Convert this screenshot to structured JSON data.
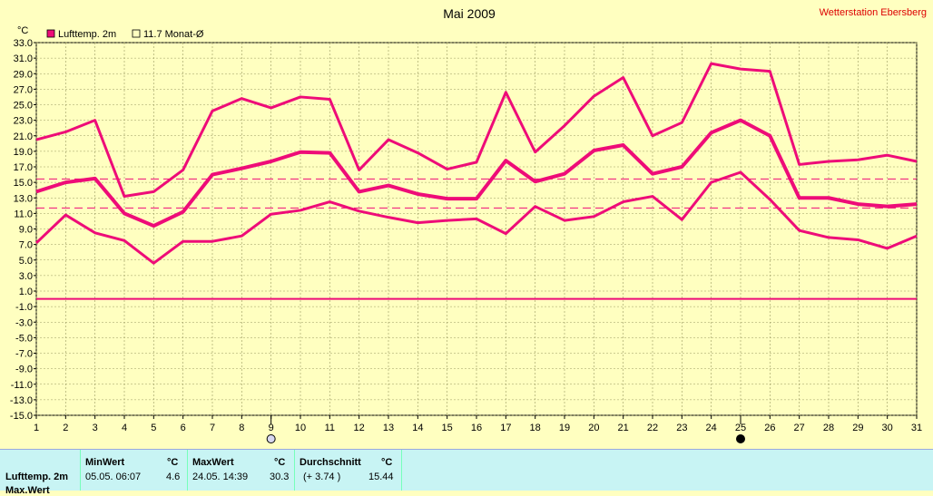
{
  "chart_data": {
    "type": "line",
    "title": "Mai 2009",
    "station": "Wetterstation Ebersberg",
    "unit_label": "°C",
    "legend": [
      {
        "label": "Lufttemp. 2m",
        "swatch": "filled"
      },
      {
        "label": "11.7 Monat-Ø",
        "swatch": "empty"
      }
    ],
    "x": [
      1,
      2,
      3,
      4,
      5,
      6,
      7,
      8,
      9,
      10,
      11,
      12,
      13,
      14,
      15,
      16,
      17,
      18,
      19,
      20,
      21,
      22,
      23,
      24,
      25,
      26,
      27,
      28,
      29,
      30,
      31
    ],
    "xlim": [
      1,
      31
    ],
    "ylim": [
      -15.0,
      33.0
    ],
    "yticks": [
      "33.0",
      "31.0",
      "29.0",
      "27.0",
      "25.0",
      "23.0",
      "21.0",
      "19.0",
      "17.0",
      "15.0",
      "13.0",
      "11.0",
      "9.0",
      "7.0",
      "5.0",
      "3.0",
      "1.0",
      "-1.0",
      "-3.0",
      "-5.0",
      "-7.0",
      "-9.0",
      "-11.0",
      "-13.0",
      "-15.0"
    ],
    "grid": true,
    "legend_position": "top-left",
    "series": [
      {
        "role": "max",
        "values": [
          20.5,
          21.5,
          23.0,
          13.2,
          13.8,
          16.6,
          24.2,
          25.8,
          24.6,
          26.0,
          25.7,
          16.6,
          20.5,
          18.8,
          16.7,
          17.6,
          26.6,
          18.9,
          22.3,
          26.1,
          28.5,
          21.0,
          22.7,
          30.3,
          29.6,
          29.3,
          17.3,
          17.7,
          17.9,
          18.5,
          17.7
        ]
      },
      {
        "role": "mean",
        "values": [
          13.8,
          15.0,
          15.5,
          11.0,
          9.4,
          11.2,
          16.0,
          16.8,
          17.7,
          18.9,
          18.8,
          13.8,
          14.6,
          13.5,
          12.9,
          12.9,
          17.8,
          15.1,
          16.1,
          19.1,
          19.8,
          16.1,
          17.0,
          21.4,
          23.0,
          21.0,
          13.0,
          13.0,
          12.2,
          11.9,
          12.2
        ]
      },
      {
        "role": "min",
        "values": [
          7.2,
          10.8,
          8.5,
          7.5,
          4.6,
          7.4,
          7.4,
          8.1,
          10.9,
          11.4,
          12.5,
          11.3,
          10.5,
          9.8,
          10.1,
          10.3,
          8.4,
          11.9,
          10.1,
          10.6,
          12.5,
          13.2,
          10.2,
          15.0,
          16.3,
          12.8,
          8.8,
          7.9,
          7.6,
          6.5,
          8.1
        ]
      }
    ],
    "reference_lines": [
      {
        "role": "zero",
        "y": 0.0,
        "style": "solid"
      },
      {
        "role": "monthly-average",
        "y": 11.7,
        "style": "dashed"
      },
      {
        "role": "upper-band",
        "y": 15.44,
        "style": "dashed"
      }
    ],
    "markers": [
      {
        "day": 9,
        "symbol": "open-circle"
      },
      {
        "day": 25,
        "symbol": "filled-circle"
      }
    ],
    "colors": {
      "series": "#ee0c78",
      "background": "#ffffc0",
      "grid": "#9a9a60",
      "station_text": "#dd0000"
    }
  },
  "stats": {
    "row_label": "Lufttemp. 2m",
    "next_row_label": "Max.Wert",
    "min_header": "MinWert",
    "max_header": "MaxWert",
    "avg_header": "Durchschnitt",
    "unit": "°C",
    "min_date": "05.05.  06:07",
    "min_value": "4.6",
    "max_date": "24.05.  14:39",
    "max_value": "30.3",
    "avg_delta": "(+ 3.74 )",
    "avg_value": "15.44"
  }
}
